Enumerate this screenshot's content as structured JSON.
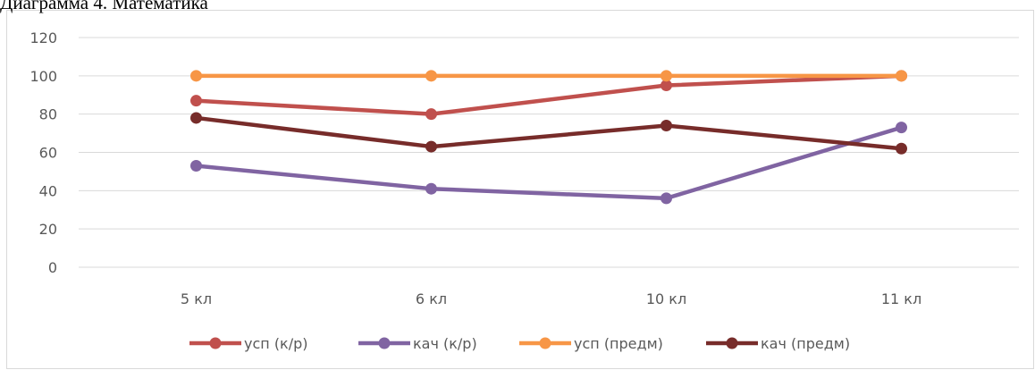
{
  "page": {
    "title": "Диаграмма 4. Математика"
  },
  "chart_data": {
    "type": "line",
    "title": "",
    "xlabel": "",
    "ylabel": "",
    "categories": [
      "5 кл",
      "6 кл",
      "10 кл",
      "11 кл"
    ],
    "ylim": [
      0,
      120
    ],
    "yticks": [
      0,
      20,
      40,
      60,
      80,
      100,
      120
    ],
    "grid": true,
    "legend_position": "bottom",
    "series": [
      {
        "name": "усп (к/р)",
        "color": "#c0504d",
        "values": [
          87,
          80,
          95,
          100
        ]
      },
      {
        "name": "кач (к/р)",
        "color": "#8064a2",
        "values": [
          53,
          41,
          36,
          73
        ]
      },
      {
        "name": "усп (предм)",
        "color": "#f79646",
        "values": [
          100,
          100,
          100,
          100
        ]
      },
      {
        "name": "кач (предм)",
        "color": "#772c2a",
        "values": [
          78,
          63,
          74,
          62
        ]
      }
    ]
  }
}
